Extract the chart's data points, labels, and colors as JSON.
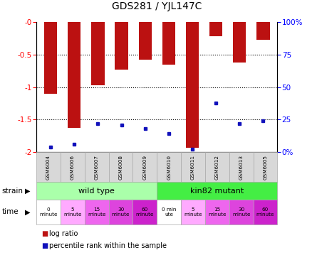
{
  "title": "GDS281 / YJL147C",
  "samples": [
    "GSM6004",
    "GSM6006",
    "GSM6007",
    "GSM6008",
    "GSM6009",
    "GSM6010",
    "GSM6011",
    "GSM6012",
    "GSM6013",
    "GSM6005"
  ],
  "log_ratios": [
    -1.1,
    -1.63,
    -0.97,
    -0.73,
    -0.58,
    -0.65,
    -1.93,
    -0.22,
    -0.62,
    -0.27
  ],
  "percentile_ranks": [
    4,
    6,
    22,
    21,
    18,
    14,
    2,
    38,
    22,
    24
  ],
  "ylim_left": [
    -2.0,
    0.0
  ],
  "yticks_left": [
    0.0,
    -0.5,
    -1.0,
    -1.5,
    -2.0
  ],
  "ytick_labels_left": [
    "-0",
    "-0.5",
    "-1",
    "-1.5",
    "-2"
  ],
  "yticks_right": [
    0,
    25,
    50,
    75,
    100
  ],
  "ytick_labels_right": [
    "0%",
    "25",
    "50",
    "75",
    "100%"
  ],
  "bar_color": "#bb1111",
  "dot_color": "#1111bb",
  "strain_wt_color": "#aaffaa",
  "strain_mut_color": "#44ee44",
  "time_colors": [
    "#ffffff",
    "#ffaaff",
    "#ee66ee",
    "#dd44dd",
    "#cc22cc"
  ],
  "time_0_mut_color": "#ffffff",
  "strain_wt_label": "wild type",
  "strain_mut_label": "kin82 mutant",
  "time_labels_wt": [
    "0\nminute",
    "5\nminute",
    "15\nminute",
    "30\nminute",
    "60\nminute"
  ],
  "time_labels_mut": [
    "0 min\nute",
    "5\nminute",
    "15\nminute",
    "30\nminute",
    "60\nminute"
  ],
  "legend_log": "log ratio",
  "legend_pct": "percentile rank within the sample",
  "cell_border_color": "#aaaaaa"
}
